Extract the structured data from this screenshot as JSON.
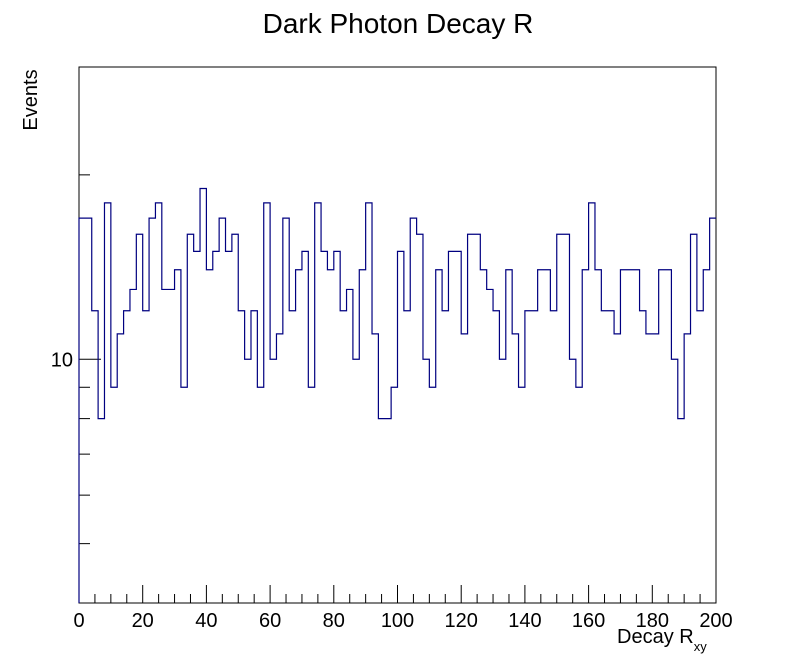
{
  "chart_data": {
    "type": "histogram",
    "title": "Dark Photon Decay R",
    "xlabel_main": "Decay R",
    "xlabel_sub": "xy",
    "ylabel": "Events",
    "xlim": [
      0,
      200
    ],
    "ylim": [
      4,
      30
    ],
    "y_scale": "log",
    "bin_width": 2,
    "x_ticks": [
      0,
      20,
      40,
      60,
      80,
      100,
      120,
      140,
      160,
      180,
      200
    ],
    "x_tick_labels": [
      "0",
      "20",
      "40",
      "60",
      "80",
      "100",
      "120",
      "140",
      "160",
      "180",
      "200"
    ],
    "y_tick_labels": [
      {
        "value": 10,
        "label": "10"
      }
    ],
    "line_color": "#000080",
    "values": [
      17,
      17,
      12,
      8,
      18,
      9,
      11,
      12,
      13,
      16,
      12,
      17,
      18,
      13,
      13,
      14,
      9,
      16,
      15,
      19,
      14,
      15,
      17,
      15,
      16,
      12,
      10,
      12,
      9,
      18,
      10,
      11,
      17,
      12,
      14,
      15,
      9,
      18,
      15,
      14,
      15,
      12,
      13,
      10,
      14,
      18,
      11,
      8,
      8,
      9,
      15,
      12,
      17,
      16,
      10,
      9,
      14,
      12,
      15,
      15,
      11,
      16,
      16,
      14,
      13,
      12,
      10,
      14,
      11,
      9,
      12,
      12,
      14,
      14,
      12,
      16,
      16,
      10,
      9,
      14,
      18,
      14,
      12,
      12,
      11,
      14,
      14,
      14,
      12,
      11,
      11,
      14,
      14,
      10,
      8,
      11,
      16,
      12,
      14,
      17
    ]
  }
}
